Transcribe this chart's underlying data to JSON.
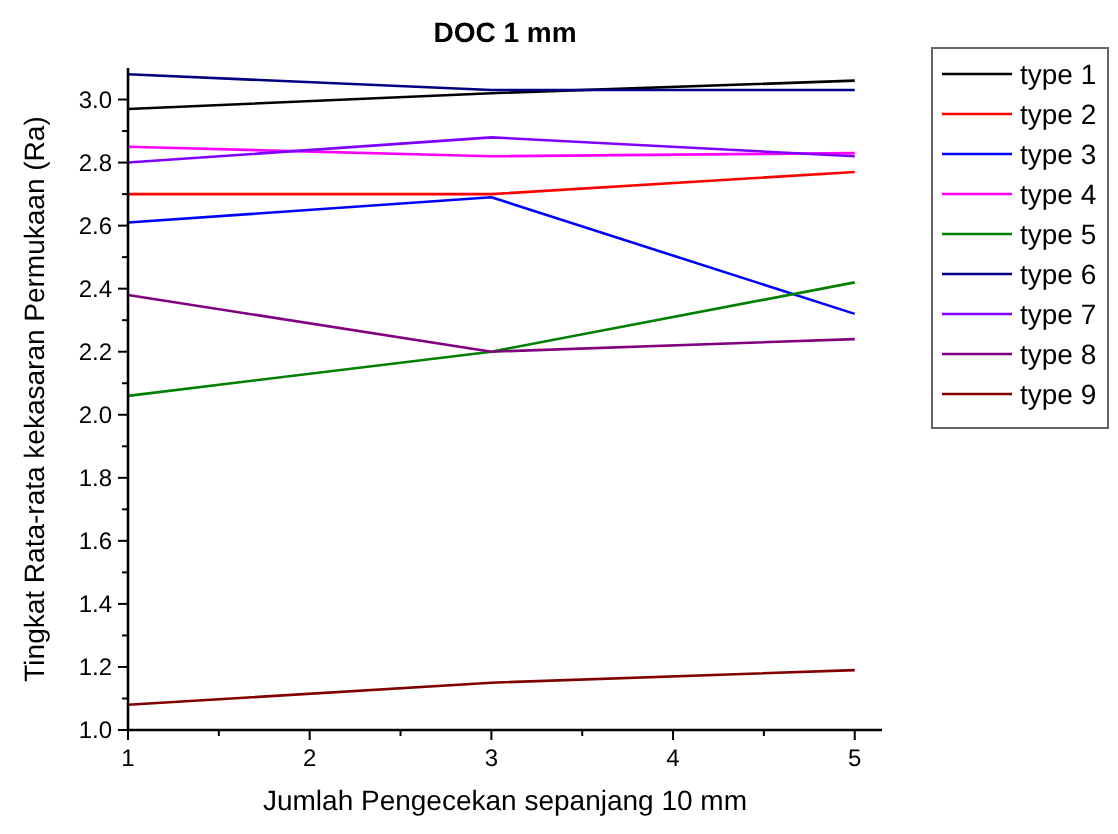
{
  "chart_data": {
    "type": "line",
    "title": "DOC 1 mm",
    "xlabel": "Jumlah Pengecekan sepanjang 10 mm",
    "ylabel": "Tingkat Rata-rata kekasaran Permukaan (Ra)",
    "x": [
      1,
      3,
      5
    ],
    "xlim": [
      1,
      5.15
    ],
    "xticks": [
      1,
      2,
      3,
      4,
      5
    ],
    "ylim": [
      1.0,
      3.1
    ],
    "yticks": [
      {
        "value": 1.0,
        "label": "1.0"
      },
      1.2,
      1.4,
      1.6,
      1.8,
      {
        "value": 2.0,
        "label": "2.0"
      },
      2.2,
      2.4,
      2.6,
      2.8,
      {
        "value": 3.0,
        "label": "3.0"
      }
    ],
    "legend": "right",
    "marker": "none",
    "line_style": "solid",
    "grid": false,
    "series": [
      {
        "name": "type 1",
        "color": "#000000",
        "values": [
          2.97,
          3.02,
          3.06
        ]
      },
      {
        "name": "type 2",
        "color": "#ff0000",
        "values": [
          2.7,
          2.7,
          2.77
        ]
      },
      {
        "name": "type 3",
        "color": "#0000ff",
        "values": [
          2.61,
          2.69,
          2.32
        ]
      },
      {
        "name": "type 4",
        "color": "#ff00ff",
        "values": [
          2.85,
          2.82,
          2.83
        ]
      },
      {
        "name": "type 5",
        "color": "#008000",
        "values": [
          2.06,
          2.2,
          2.42
        ]
      },
      {
        "name": "type 6",
        "color": "#000080",
        "values": [
          3.08,
          3.03,
          3.03
        ]
      },
      {
        "name": "type 7",
        "color": "#8000ff",
        "values": [
          2.8,
          2.88,
          2.82
        ]
      },
      {
        "name": "type 8",
        "color": "#800080",
        "values": [
          2.38,
          2.2,
          2.24
        ]
      },
      {
        "name": "type 9",
        "color": "#800000",
        "values": [
          1.08,
          1.15,
          1.19
        ]
      }
    ]
  }
}
